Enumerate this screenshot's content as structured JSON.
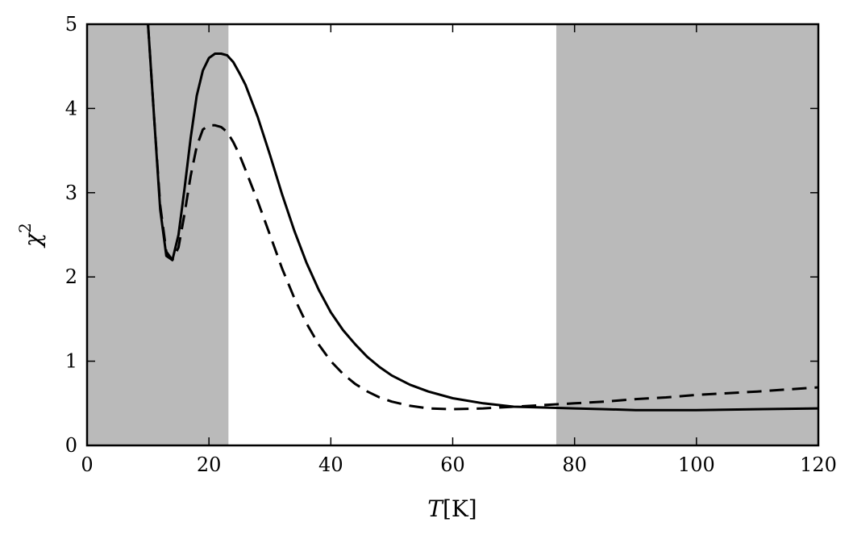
{
  "chart_data": {
    "type": "line",
    "xlabel_italic": "T",
    "xlabel_unit": "[K]",
    "ylabel_main": "χ",
    "ylabel_sup": "2",
    "xlim": [
      0,
      120
    ],
    "ylim": [
      0,
      5
    ],
    "xticks": [
      0,
      20,
      40,
      60,
      80,
      100,
      120
    ],
    "yticks": [
      0,
      1,
      2,
      3,
      4,
      5
    ],
    "grid": false,
    "shaded_regions": [
      {
        "x0": 0,
        "x1": 23.2,
        "color": "#bababa"
      },
      {
        "x0": 77,
        "x1": 120,
        "color": "#bababa"
      }
    ],
    "series": [
      {
        "style": "solid",
        "color": "#000000",
        "x": [
          10,
          11,
          12,
          13,
          14,
          15,
          16,
          17,
          18,
          19,
          20,
          21,
          22,
          23,
          24,
          25,
          26,
          28,
          30,
          32,
          34,
          36,
          38,
          40,
          42,
          44,
          46,
          48,
          50,
          53,
          56,
          60,
          65,
          70,
          75,
          80,
          85,
          90,
          95,
          100,
          110,
          120
        ],
        "y": [
          5.0,
          3.9,
          2.8,
          2.25,
          2.2,
          2.5,
          3.05,
          3.65,
          4.15,
          4.45,
          4.6,
          4.65,
          4.65,
          4.63,
          4.55,
          4.42,
          4.28,
          3.9,
          3.45,
          2.98,
          2.55,
          2.17,
          1.85,
          1.58,
          1.37,
          1.2,
          1.05,
          0.93,
          0.83,
          0.72,
          0.64,
          0.56,
          0.5,
          0.46,
          0.45,
          0.44,
          0.43,
          0.42,
          0.42,
          0.42,
          0.43,
          0.44
        ]
      },
      {
        "style": "dashed",
        "color": "#000000",
        "x": [
          10,
          11,
          12,
          13,
          14,
          15,
          16,
          17,
          18,
          19,
          20,
          21,
          22,
          23,
          24,
          25,
          26,
          28,
          30,
          32,
          34,
          36,
          38,
          40,
          42,
          44,
          46,
          48,
          50,
          53,
          56,
          60,
          65,
          70,
          75,
          80,
          85,
          90,
          95,
          100,
          110,
          120
        ],
        "y": [
          5.0,
          3.9,
          2.85,
          2.3,
          2.2,
          2.35,
          2.75,
          3.2,
          3.55,
          3.75,
          3.8,
          3.8,
          3.78,
          3.72,
          3.6,
          3.45,
          3.27,
          2.9,
          2.5,
          2.1,
          1.75,
          1.45,
          1.2,
          1.0,
          0.85,
          0.73,
          0.64,
          0.57,
          0.52,
          0.47,
          0.44,
          0.43,
          0.44,
          0.46,
          0.48,
          0.5,
          0.52,
          0.55,
          0.57,
          0.6,
          0.64,
          0.69
        ]
      }
    ]
  }
}
